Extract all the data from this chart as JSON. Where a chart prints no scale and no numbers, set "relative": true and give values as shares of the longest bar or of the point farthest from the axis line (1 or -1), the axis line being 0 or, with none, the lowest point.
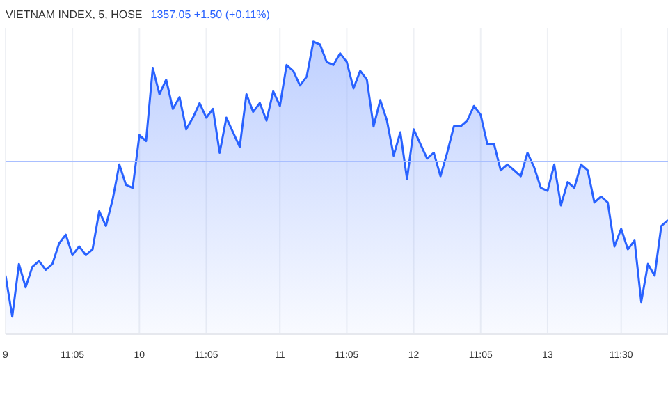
{
  "chart_data": {
    "type": "area",
    "title": "VIETNAM INDEX, 5, HOSE",
    "subtitle": "1357.05 +1.50 (+0.11%)",
    "relative": true,
    "grid": "x",
    "legend": false,
    "categories": [
      "9",
      null,
      null,
      null,
      null,
      null,
      null,
      null,
      null,
      null,
      "11:05",
      null,
      null,
      null,
      null,
      null,
      null,
      null,
      null,
      null,
      "10",
      null,
      null,
      null,
      null,
      null,
      null,
      null,
      null,
      null,
      "11:05",
      null,
      null,
      null,
      null,
      null,
      null,
      null,
      null,
      null,
      null,
      "11",
      null,
      null,
      null,
      null,
      null,
      null,
      null,
      null,
      null,
      "11:05",
      null,
      null,
      null,
      null,
      null,
      null,
      null,
      null,
      null,
      "12",
      null,
      null,
      null,
      null,
      null,
      null,
      null,
      null,
      null,
      "11:05",
      null,
      null,
      null,
      null,
      null,
      null,
      null,
      null,
      null,
      "13",
      null,
      null,
      null,
      null,
      null,
      null,
      null,
      null,
      null,
      null,
      "11:30",
      null,
      null,
      null,
      null,
      null,
      null,
      null
    ],
    "ref_lines": [
      {
        "axis": "y",
        "value": 0.59,
        "color": "#a9bfff"
      }
    ],
    "series": [
      {
        "color": "#2962ff",
        "values": [
          0.2,
          0.06,
          0.24,
          0.16,
          0.23,
          0.25,
          0.22,
          0.24,
          0.31,
          0.34,
          0.27,
          0.3,
          0.27,
          0.29,
          0.42,
          0.37,
          0.46,
          0.58,
          0.51,
          0.5,
          0.68,
          0.66,
          0.91,
          0.82,
          0.87,
          0.77,
          0.81,
          0.7,
          0.74,
          0.79,
          0.74,
          0.77,
          0.62,
          0.74,
          0.69,
          0.64,
          0.82,
          0.76,
          0.79,
          0.73,
          0.83,
          0.78,
          0.92,
          0.9,
          0.85,
          0.88,
          1,
          0.99,
          0.93,
          0.92,
          0.96,
          0.93,
          0.84,
          0.9,
          0.87,
          0.71,
          0.8,
          0.73,
          0.61,
          0.69,
          0.53,
          0.7,
          0.65,
          0.6,
          0.62,
          0.54,
          0.62,
          0.71,
          0.71,
          0.73,
          0.78,
          0.75,
          0.65,
          0.65,
          0.56,
          0.58,
          0.56,
          0.54,
          0.62,
          0.57,
          0.5,
          0.49,
          0.58,
          0.44,
          0.52,
          0.5,
          0.58,
          0.56,
          0.45,
          0.47,
          0.45,
          0.3,
          0.36,
          0.29,
          0.32,
          0.11,
          0.24,
          0.2,
          0.37,
          0.39
        ]
      }
    ]
  }
}
